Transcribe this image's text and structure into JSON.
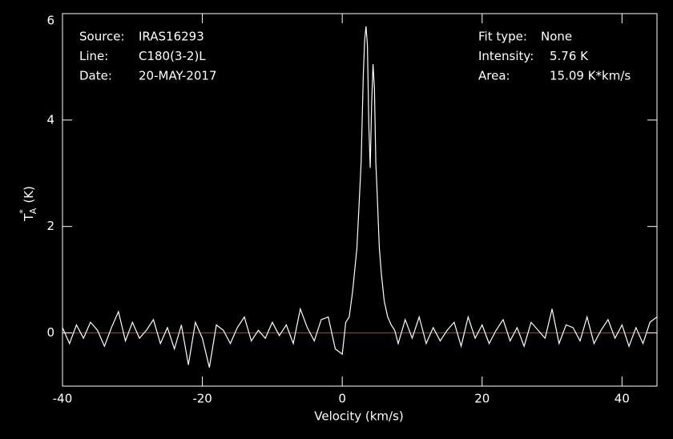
{
  "chart_data": {
    "type": "line",
    "x_label": "Velocity (km/s)",
    "y_label": {
      "main": "T",
      "sup": "*",
      "sub": "A",
      "unit": "(K)"
    },
    "info_left": [
      {
        "label": "Source:",
        "value": "IRAS16293"
      },
      {
        "label": "Line:",
        "value": "C180(3-2)L"
      },
      {
        "label": "Date:",
        "value": "20-MAY-2017"
      }
    ],
    "info_right": [
      {
        "label": "Fit type:",
        "value": "None"
      },
      {
        "label": "Intensity:",
        "value": "5.76 K"
      },
      {
        "label": "Area:",
        "value": "15.09 K*km/s"
      }
    ],
    "xlim": [
      -40,
      45
    ],
    "ylim": [
      -1,
      6
    ],
    "xticks": [
      -40,
      -20,
      0,
      20,
      40
    ],
    "yticks": [
      0,
      2,
      4,
      6
    ],
    "baseline": 0,
    "baseline_color": "#ff2020",
    "series": [
      {
        "color": "#ffffff",
        "x": [
          -40,
          -39,
          -38,
          -37,
          -36,
          -35,
          -34,
          -33,
          -32,
          -31,
          -30,
          -29,
          -28,
          -27,
          -26,
          -25,
          -24,
          -23,
          -22,
          -21,
          -20,
          -19,
          -18,
          -17,
          -16,
          -15,
          -14,
          -13,
          -12,
          -11,
          -10,
          -9,
          -8,
          -7,
          -6,
          -5,
          -4,
          -3,
          -2,
          -1,
          0,
          0.5,
          1,
          1.5,
          1.8,
          2.1,
          2.4,
          2.7,
          3.0,
          3.2,
          3.4,
          3.6,
          3.8,
          4.0,
          4.2,
          4.4,
          4.6,
          4.8,
          5.0,
          5.3,
          5.6,
          6.0,
          6.5,
          7.0,
          7.5,
          8,
          9,
          10,
          11,
          12,
          13,
          14,
          15,
          16,
          17,
          18,
          19,
          20,
          21,
          22,
          23,
          24,
          25,
          26,
          27,
          28,
          29,
          30,
          31,
          32,
          33,
          34,
          35,
          36,
          37,
          38,
          39,
          40,
          41,
          42,
          43,
          44,
          45
        ],
        "values": [
          0.1,
          -0.2,
          0.15,
          -0.1,
          0.2,
          0.05,
          -0.25,
          0.1,
          0.4,
          -0.15,
          0.2,
          -0.1,
          0.05,
          0.25,
          -0.2,
          0.1,
          -0.3,
          0.15,
          -0.6,
          0.2,
          -0.1,
          -0.65,
          0.15,
          0.05,
          -0.2,
          0.1,
          0.3,
          -0.15,
          0.05,
          -0.1,
          0.2,
          -0.05,
          0.15,
          -0.2,
          0.45,
          0.1,
          -0.15,
          0.25,
          0.3,
          -0.3,
          -0.4,
          0.2,
          0.3,
          0.8,
          1.2,
          1.6,
          2.4,
          3.2,
          4.8,
          5.5,
          5.76,
          5.4,
          3.9,
          3.1,
          4.3,
          5.05,
          4.6,
          3.2,
          2.6,
          1.6,
          1.1,
          0.6,
          0.3,
          0.15,
          0.05,
          -0.2,
          0.25,
          -0.1,
          0.3,
          -0.2,
          0.1,
          -0.15,
          0.05,
          0.2,
          -0.25,
          0.3,
          -0.1,
          0.15,
          -0.2,
          0.05,
          0.25,
          -0.15,
          0.1,
          -0.25,
          0.2,
          0.05,
          -0.1,
          0.45,
          -0.2,
          0.15,
          0.1,
          -0.15,
          0.3,
          -0.2,
          0.05,
          0.25,
          -0.1,
          0.15,
          -0.25,
          0.1,
          -0.2,
          0.2,
          0.3
        ]
      }
    ]
  }
}
